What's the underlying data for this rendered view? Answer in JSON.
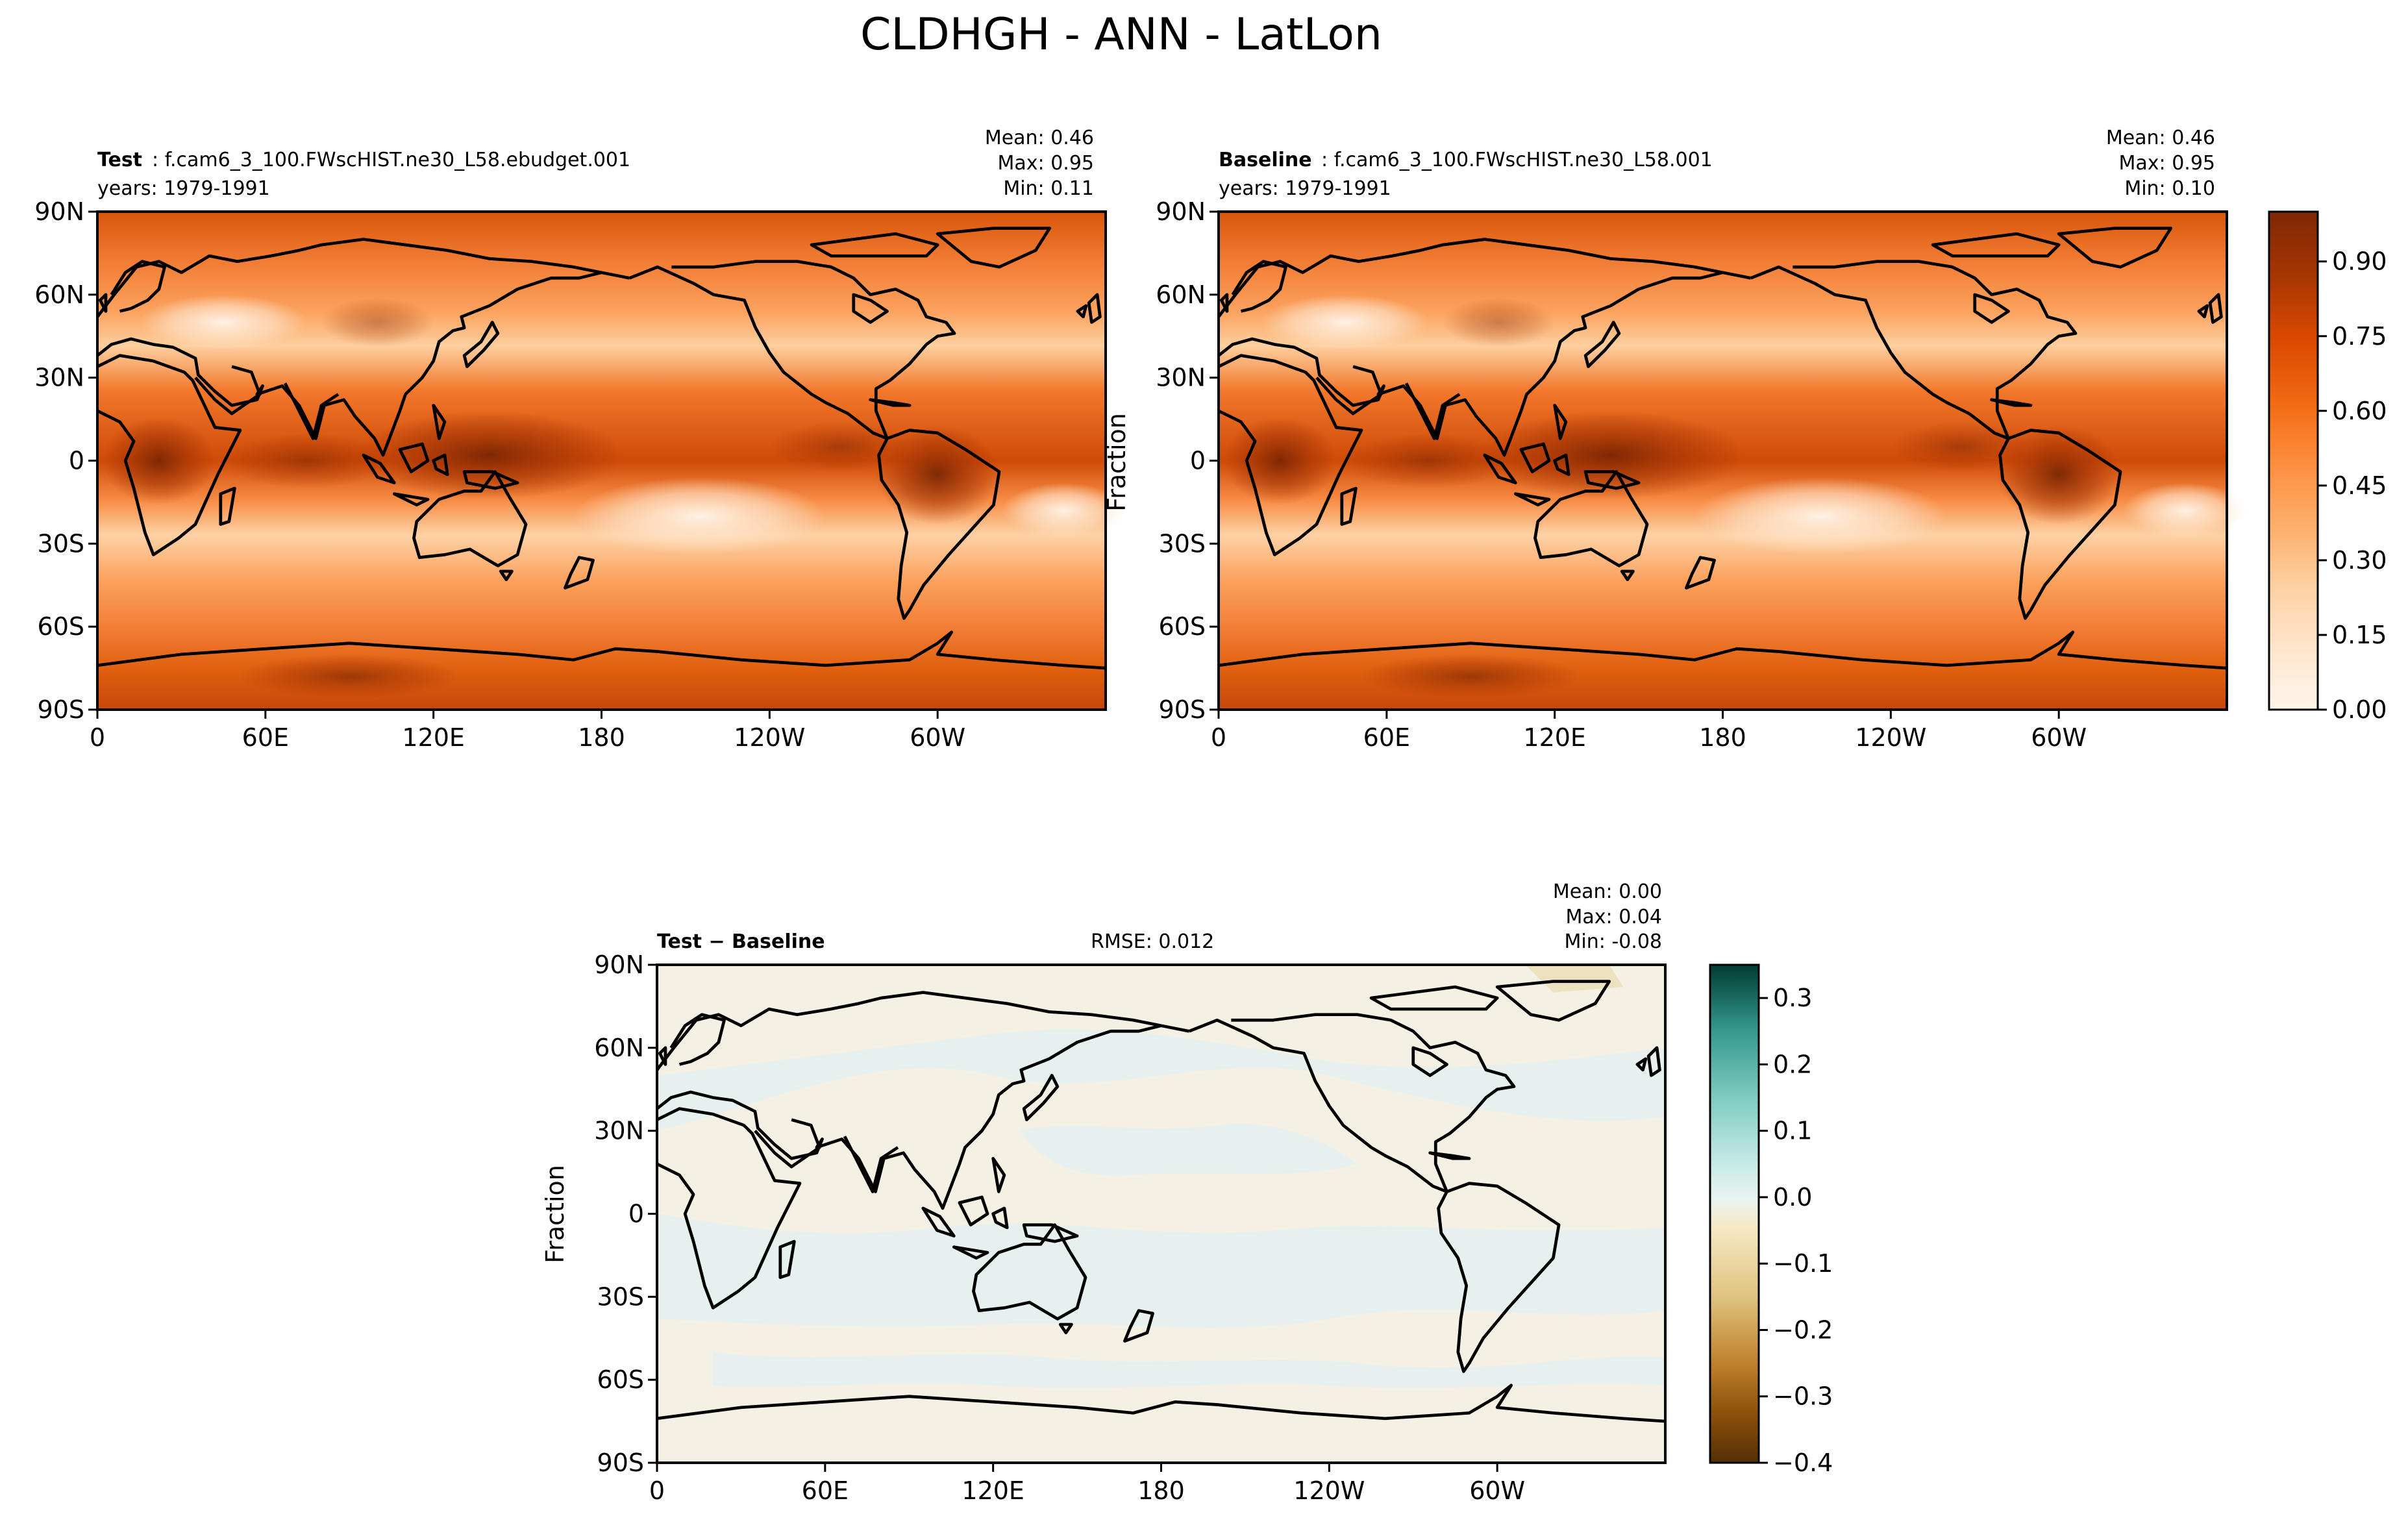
{
  "figure": {
    "title": "CLDHGH - ANN - LatLon"
  },
  "panels": [
    {
      "id": "test",
      "label_bold": "Test",
      "label_rest": ": f.cam6_3_100.FWscHIST.ne30_L58.ebudget.001",
      "years": "years: 1979-1991",
      "stats": {
        "mean": "Mean:  0.46",
        "max": "Max:  0.95",
        "min": "Min:  0.11"
      },
      "ylabel": ""
    },
    {
      "id": "baseline",
      "label_bold": "Baseline",
      "label_rest": ": f.cam6_3_100.FWscHIST.ne30_L58.001",
      "years": "years: 1979-1991",
      "stats": {
        "mean": "Mean:  0.46",
        "max": "Max:  0.95",
        "min": "Min:  0.10"
      },
      "ylabel": "Fraction"
    },
    {
      "id": "diff",
      "label_bold": "Test − Baseline",
      "rmse": "RMSE: 0.012",
      "stats": {
        "mean": "Mean:  0.00",
        "max": "Max:  0.04",
        "min": "Min: -0.08"
      },
      "ylabel": "Fraction"
    }
  ],
  "colorbars": [
    {
      "id": "main",
      "ticks": [
        "0.00",
        "0.15",
        "0.30",
        "0.45",
        "0.60",
        "0.75",
        "0.90"
      ],
      "range": [
        0,
        1.0
      ],
      "levels": 20,
      "colors": [
        "#fff5eb",
        "#fee6ce",
        "#fdd0a2",
        "#fdae6b",
        "#fd8d3c",
        "#f16913",
        "#d94801",
        "#a63603",
        "#7f2704"
      ]
    },
    {
      "id": "diff",
      "ticks": [
        "0.3",
        "0.2",
        "0.1",
        "0.0",
        "−0.1",
        "−0.2",
        "−0.3",
        "−0.4"
      ],
      "range": [
        -0.4,
        0.35
      ],
      "levels": 15,
      "colors": [
        "#543005",
        "#8c510a",
        "#bf812d",
        "#dfc27d",
        "#f6e8c3",
        "#f5f5f5",
        "#c7eae5",
        "#80cdc1",
        "#35978f",
        "#01665e",
        "#003c30"
      ]
    }
  ],
  "chart_data": [
    {
      "type": "heatmap",
      "title": "Test",
      "variable": "CLDHGH",
      "xticks": [
        "0",
        "60E",
        "120E",
        "180",
        "120W",
        "60W"
      ],
      "yticks": [
        "90N",
        "60N",
        "30N",
        "0",
        "30S",
        "60S",
        "90S"
      ],
      "xlim": [
        0,
        360
      ],
      "ylim": [
        -90,
        90
      ],
      "mean": 0.46,
      "max": 0.95,
      "min": 0.11
    },
    {
      "type": "heatmap",
      "title": "Baseline",
      "variable": "CLDHGH",
      "xticks": [
        "0",
        "60E",
        "120E",
        "180",
        "120W",
        "60W"
      ],
      "yticks": [
        "90N",
        "60N",
        "30N",
        "0",
        "30S",
        "60S",
        "90S"
      ],
      "xlim": [
        0,
        360
      ],
      "ylim": [
        -90,
        90
      ],
      "mean": 0.46,
      "max": 0.95,
      "min": 0.1
    },
    {
      "type": "heatmap",
      "title": "Test − Baseline",
      "variable": "CLDHGH",
      "xticks": [
        "0",
        "60E",
        "120E",
        "180",
        "120W",
        "60W"
      ],
      "yticks": [
        "90N",
        "60N",
        "30N",
        "0",
        "30S",
        "60S",
        "90S"
      ],
      "xlim": [
        0,
        360
      ],
      "ylim": [
        -90,
        90
      ],
      "mean": 0.0,
      "max": 0.04,
      "min": -0.08,
      "rmse": 0.012
    }
  ]
}
